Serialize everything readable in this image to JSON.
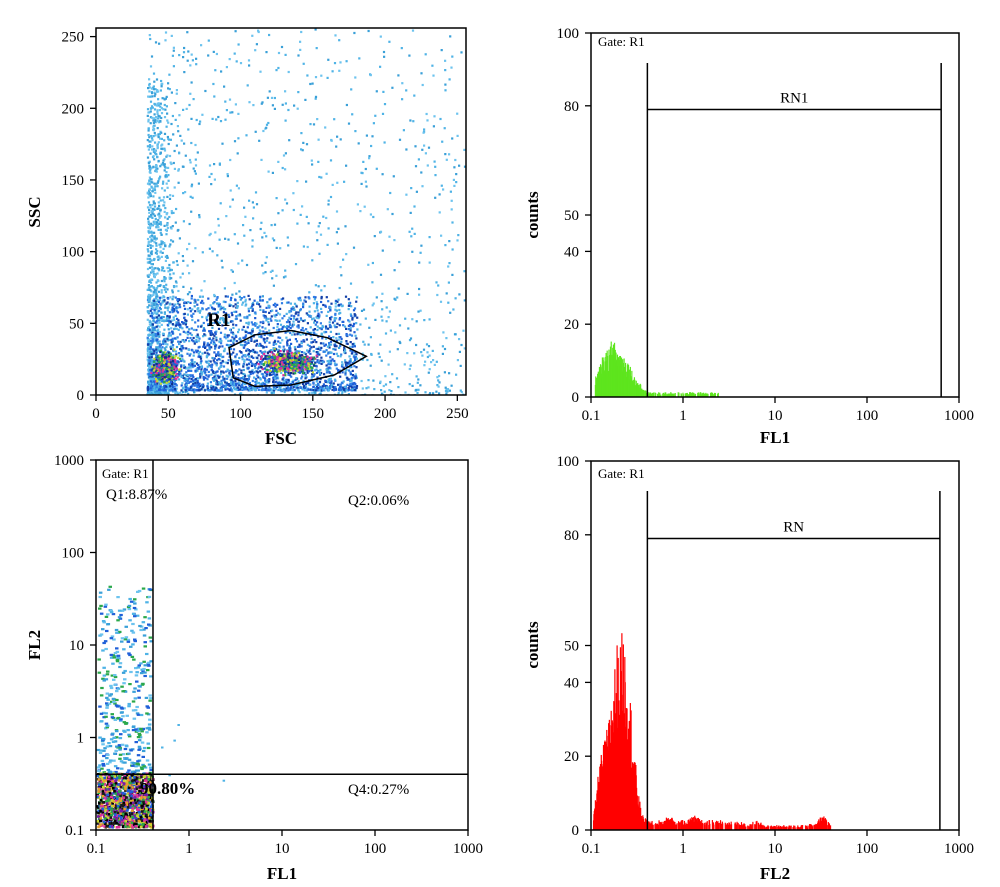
{
  "chart_data": [
    {
      "type": "scatter",
      "panel": "top-left",
      "xlabel": "FSC",
      "ylabel": "SSC",
      "xlim": [
        0,
        256
      ],
      "ylim": [
        0,
        256
      ],
      "xticks": [
        "0",
        "50",
        "100",
        "150",
        "200",
        "250"
      ],
      "yticks": [
        "0",
        "50",
        "100",
        "150",
        "200",
        "250"
      ],
      "gate_label": "R1",
      "gate_polygon": [
        [
          92,
          33
        ],
        [
          110,
          42
        ],
        [
          135,
          45
        ],
        [
          160,
          40
        ],
        [
          187,
          27
        ],
        [
          165,
          14
        ],
        [
          135,
          7
        ],
        [
          110,
          6
        ],
        [
          95,
          12
        ],
        [
          92,
          33
        ]
      ],
      "density": [
        {
          "x_range": [
            35,
            60
          ],
          "y_range": [
            5,
            35
          ],
          "level": "high"
        },
        {
          "x_range": [
            105,
            160
          ],
          "y_range": [
            12,
            35
          ],
          "level": "high"
        },
        {
          "x_range": [
            35,
            180
          ],
          "y_range": [
            5,
            70
          ],
          "level": "medium"
        },
        {
          "x_range": [
            35,
            256
          ],
          "y_range": [
            0,
            256
          ],
          "level": "low"
        }
      ]
    },
    {
      "type": "bar",
      "panel": "top-right",
      "gate": "Gate: R1",
      "xlabel": "FL1",
      "ylabel": "counts",
      "xscale": "log",
      "xlim": [
        0.1,
        1000
      ],
      "ylim": [
        0,
        100
      ],
      "xticks": [
        "0.1",
        "1",
        "10",
        "100",
        "1000"
      ],
      "yticks": [
        "0",
        "20",
        "40",
        "50",
        "80",
        "100"
      ],
      "color": "#5ee51e",
      "marker": {
        "label": "RN1",
        "x_range": [
          0.41,
          640
        ],
        "y": 79
      },
      "histogram": [
        {
          "x": 0.11,
          "y": 4
        },
        {
          "x": 0.12,
          "y": 6
        },
        {
          "x": 0.13,
          "y": 8
        },
        {
          "x": 0.14,
          "y": 9
        },
        {
          "x": 0.15,
          "y": 10
        },
        {
          "x": 0.16,
          "y": 11
        },
        {
          "x": 0.17,
          "y": 12
        },
        {
          "x": 0.18,
          "y": 11
        },
        {
          "x": 0.19,
          "y": 10
        },
        {
          "x": 0.2,
          "y": 10
        },
        {
          "x": 0.22,
          "y": 9
        },
        {
          "x": 0.24,
          "y": 8
        },
        {
          "x": 0.26,
          "y": 7
        },
        {
          "x": 0.28,
          "y": 5
        },
        {
          "x": 0.3,
          "y": 4
        },
        {
          "x": 0.33,
          "y": 3
        },
        {
          "x": 0.36,
          "y": 2
        },
        {
          "x": 0.4,
          "y": 1
        },
        {
          "x": 0.5,
          "y": 1
        },
        {
          "x": 0.65,
          "y": 1
        },
        {
          "x": 0.8,
          "y": 1
        },
        {
          "x": 2.4,
          "y": 1
        }
      ]
    },
    {
      "type": "scatter",
      "panel": "bottom-left",
      "gate": "Gate: R1",
      "xlabel": "FL1",
      "ylabel": "FL2",
      "xscale": "log",
      "yscale": "log",
      "xlim": [
        0.1,
        1000
      ],
      "ylim": [
        0.1,
        1000
      ],
      "xticks": [
        "0.1",
        "1",
        "10",
        "100",
        "1000"
      ],
      "yticks": [
        "0.1",
        "1",
        "10",
        "100",
        "1000"
      ],
      "quadrant_x": 0.41,
      "quadrant_y": 0.4,
      "quadrants": [
        {
          "label": "Q1:8.87%",
          "position": "top-left"
        },
        {
          "label": "Q2:0.06%",
          "position": "top-right"
        },
        {
          "label": "90.80%",
          "position": "bottom-left"
        },
        {
          "label": "Q4:0.27%",
          "position": "bottom-right"
        }
      ],
      "density": [
        {
          "x_range": [
            0.1,
            0.38
          ],
          "y_range": [
            0.11,
            0.4
          ],
          "level": "high"
        },
        {
          "x_range": [
            0.1,
            0.4
          ],
          "y_range": [
            0.4,
            45
          ],
          "level": "low"
        }
      ]
    },
    {
      "type": "bar",
      "panel": "bottom-right",
      "gate": "Gate: R1",
      "xlabel": "FL2",
      "ylabel": "counts",
      "xscale": "log",
      "xlim": [
        0.1,
        1000
      ],
      "ylim": [
        0,
        100
      ],
      "xticks": [
        "0.1",
        "1",
        "10",
        "100",
        "1000"
      ],
      "yticks": [
        "0",
        "20",
        "40",
        "50",
        "80",
        "100"
      ],
      "color": "#ff0000",
      "marker": {
        "label": "RN",
        "x_range": [
          0.41,
          620
        ],
        "y": 79
      },
      "histogram": [
        {
          "x": 0.105,
          "y": 3
        },
        {
          "x": 0.11,
          "y": 6
        },
        {
          "x": 0.115,
          "y": 9
        },
        {
          "x": 0.12,
          "y": 13
        },
        {
          "x": 0.13,
          "y": 16
        },
        {
          "x": 0.14,
          "y": 19
        },
        {
          "x": 0.15,
          "y": 21
        },
        {
          "x": 0.16,
          "y": 25
        },
        {
          "x": 0.17,
          "y": 30
        },
        {
          "x": 0.18,
          "y": 34
        },
        {
          "x": 0.19,
          "y": 38
        },
        {
          "x": 0.2,
          "y": 36
        },
        {
          "x": 0.21,
          "y": 39
        },
        {
          "x": 0.22,
          "y": 41
        },
        {
          "x": 0.23,
          "y": 37
        },
        {
          "x": 0.24,
          "y": 35
        },
        {
          "x": 0.25,
          "y": 33
        },
        {
          "x": 0.26,
          "y": 28
        },
        {
          "x": 0.27,
          "y": 25
        },
        {
          "x": 0.28,
          "y": 20
        },
        {
          "x": 0.3,
          "y": 14
        },
        {
          "x": 0.32,
          "y": 8
        },
        {
          "x": 0.34,
          "y": 5
        },
        {
          "x": 0.36,
          "y": 3
        },
        {
          "x": 0.4,
          "y": 2
        },
        {
          "x": 0.45,
          "y": 2
        },
        {
          "x": 0.5,
          "y": 2
        },
        {
          "x": 0.6,
          "y": 2
        },
        {
          "x": 0.7,
          "y": 3
        },
        {
          "x": 0.8,
          "y": 2
        },
        {
          "x": 0.9,
          "y": 2
        },
        {
          "x": 1.1,
          "y": 2
        },
        {
          "x": 1.3,
          "y": 3
        },
        {
          "x": 1.6,
          "y": 2
        },
        {
          "x": 2,
          "y": 2
        },
        {
          "x": 2.5,
          "y": 2
        },
        {
          "x": 3,
          "y": 2
        },
        {
          "x": 4,
          "y": 2
        },
        {
          "x": 5,
          "y": 1
        },
        {
          "x": 6,
          "y": 2
        },
        {
          "x": 8,
          "y": 1
        },
        {
          "x": 10,
          "y": 1
        },
        {
          "x": 13,
          "y": 1
        },
        {
          "x": 17,
          "y": 1
        },
        {
          "x": 22,
          "y": 1
        },
        {
          "x": 28,
          "y": 2
        },
        {
          "x": 33,
          "y": 3
        },
        {
          "x": 36,
          "y": 2
        },
        {
          "x": 40,
          "y": 1
        }
      ]
    }
  ]
}
